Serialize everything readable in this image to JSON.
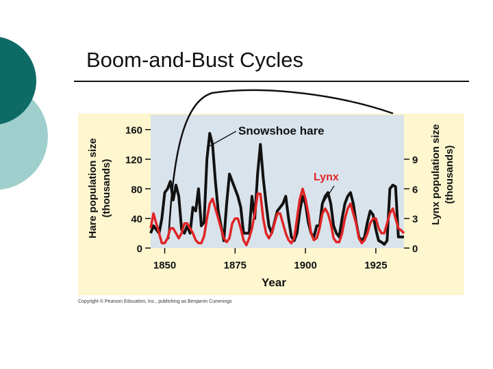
{
  "slide": {
    "title": "Boom-and-Bust Cycles",
    "copyright": "Copyright © Pearson Education, Inc., publishing as Benjamin Cummings"
  },
  "colors": {
    "teal_dark": "#0e6a66",
    "teal_light": "#9fcfcc",
    "chart_outer_bg": "#fdf6cf",
    "plot_bg": "#d9e3ec",
    "hare": "#111111",
    "lynx": "#e02424"
  },
  "chart_data": {
    "type": "line",
    "xlabel": "Year",
    "ylabel_left": "Hare population size (thousands)",
    "ylabel_right": "Lynx population size (thousands)",
    "x_ticks": [
      1850,
      1875,
      1900,
      1925
    ],
    "y_ticks_left": [
      0,
      40,
      80,
      120,
      160
    ],
    "y_ticks_right": [
      0,
      3,
      6,
      9
    ],
    "xlim": [
      1845,
      1935
    ],
    "ylim_left": [
      0,
      180
    ],
    "ylim_right": [
      0,
      13.5
    ],
    "annotations": [
      {
        "text": "Snowshoe hare",
        "series": "Snowshoe hare"
      },
      {
        "text": "Lynx",
        "series": "Lynx"
      }
    ],
    "series": [
      {
        "name": "Snowshoe hare",
        "axis": "left",
        "color": "#111111",
        "x": [
          1845,
          1846,
          1847,
          1848,
          1849,
          1850,
          1851,
          1852,
          1853,
          1854,
          1855,
          1856,
          1857,
          1858,
          1859,
          1860,
          1861,
          1862,
          1863,
          1864,
          1865,
          1866,
          1867,
          1868,
          1869,
          1870,
          1871,
          1872,
          1873,
          1874,
          1875,
          1876,
          1877,
          1878,
          1879,
          1880,
          1881,
          1882,
          1883,
          1884,
          1885,
          1886,
          1887,
          1888,
          1889,
          1890,
          1891,
          1892,
          1893,
          1894,
          1895,
          1896,
          1897,
          1898,
          1899,
          1900,
          1901,
          1902,
          1903,
          1904,
          1905,
          1906,
          1907,
          1908,
          1909,
          1910,
          1911,
          1912,
          1913,
          1914,
          1915,
          1916,
          1917,
          1918,
          1919,
          1920,
          1921,
          1922,
          1923,
          1924,
          1925,
          1926,
          1927,
          1928,
          1929,
          1930,
          1931,
          1932,
          1933,
          1934,
          1935
        ],
        "values": [
          20,
          30,
          25,
          20,
          40,
          75,
          80,
          90,
          65,
          85,
          70,
          25,
          20,
          30,
          20,
          55,
          50,
          80,
          30,
          35,
          120,
          155,
          140,
          90,
          50,
          30,
          10,
          60,
          100,
          90,
          80,
          70,
          55,
          20,
          20,
          20,
          70,
          40,
          100,
          140,
          95,
          60,
          30,
          20,
          35,
          50,
          55,
          60,
          70,
          40,
          15,
          10,
          20,
          50,
          70,
          60,
          35,
          20,
          15,
          30,
          30,
          60,
          70,
          75,
          60,
          30,
          20,
          15,
          40,
          60,
          70,
          75,
          60,
          35,
          15,
          10,
          15,
          35,
          50,
          45,
          25,
          10,
          8,
          5,
          10,
          80,
          85,
          83,
          15,
          15,
          15
        ]
      },
      {
        "name": "Lynx",
        "axis": "right",
        "color": "#e02424",
        "x": [
          1845,
          1846,
          1847,
          1848,
          1849,
          1850,
          1851,
          1852,
          1853,
          1854,
          1855,
          1856,
          1857,
          1858,
          1859,
          1860,
          1861,
          1862,
          1863,
          1864,
          1865,
          1866,
          1867,
          1868,
          1869,
          1870,
          1871,
          1872,
          1873,
          1874,
          1875,
          1876,
          1877,
          1878,
          1879,
          1880,
          1881,
          1882,
          1883,
          1884,
          1885,
          1886,
          1887,
          1888,
          1889,
          1890,
          1891,
          1892,
          1893,
          1894,
          1895,
          1896,
          1897,
          1898,
          1899,
          1900,
          1901,
          1902,
          1903,
          1904,
          1905,
          1906,
          1907,
          1908,
          1909,
          1910,
          1911,
          1912,
          1913,
          1914,
          1915,
          1916,
          1917,
          1918,
          1919,
          1920,
          1921,
          1922,
          1923,
          1924,
          1925,
          1926,
          1927,
          1928,
          1929,
          1930,
          1931,
          1932,
          1933,
          1934,
          1935
        ],
        "values": [
          2.0,
          3.5,
          2.5,
          1.5,
          0.5,
          0.5,
          1.0,
          2.0,
          2.0,
          1.5,
          1.0,
          1.5,
          2.5,
          2.5,
          2.0,
          1.5,
          0.8,
          0.5,
          0.5,
          1.2,
          3.0,
          4.5,
          5.0,
          4.0,
          3.0,
          2.0,
          1.0,
          0.6,
          1.0,
          2.5,
          3.0,
          3.0,
          2.0,
          0.8,
          0.3,
          1.0,
          2.0,
          3.5,
          5.5,
          5.5,
          3.0,
          1.5,
          1.0,
          1.5,
          2.5,
          3.5,
          3.5,
          2.5,
          1.5,
          0.8,
          0.5,
          1.0,
          3.0,
          5.0,
          6.0,
          5.0,
          3.5,
          1.5,
          0.8,
          1.0,
          2.0,
          3.5,
          4.0,
          3.5,
          2.5,
          1.0,
          0.6,
          0.6,
          1.5,
          3.0,
          4.0,
          4.5,
          3.5,
          2.5,
          1.0,
          0.5,
          0.8,
          1.5,
          2.5,
          3.0,
          3.0,
          2.0,
          1.5,
          1.5,
          2.5,
          3.5,
          4.0,
          3.0,
          2.0,
          1.8,
          1.5
        ]
      }
    ]
  }
}
